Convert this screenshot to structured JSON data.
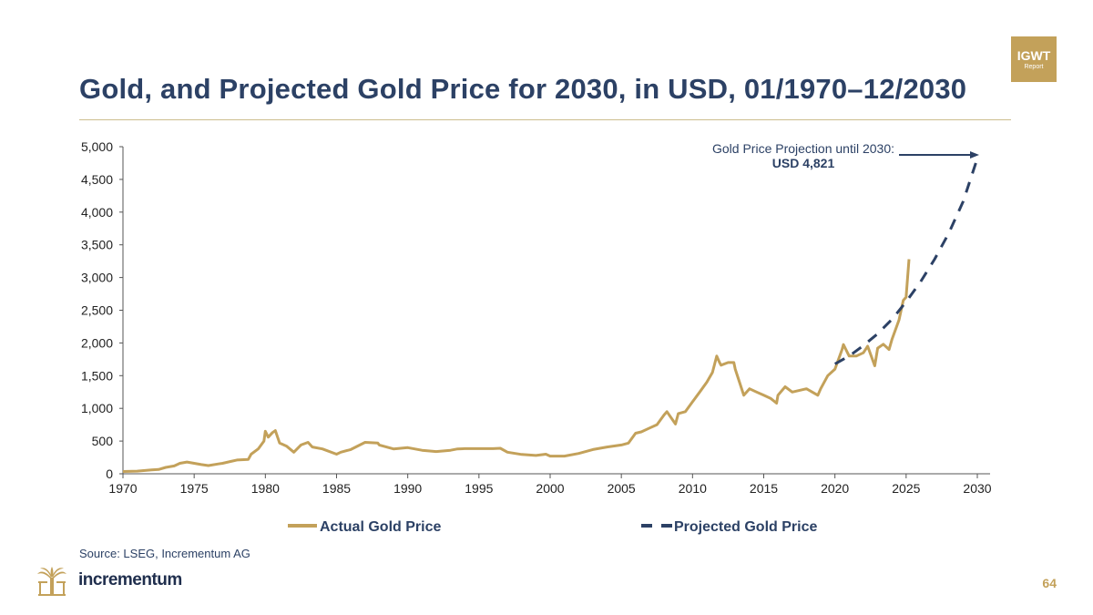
{
  "page": {
    "title": "Gold, and Projected Gold Price for 2030, in USD, 01/1970–12/2030",
    "badge_main": "IGWT",
    "badge_sub": "Report",
    "source": "Source: LSEG, Incrementum AG",
    "brand": "incrementum",
    "page_number": "64"
  },
  "colors": {
    "actual": "#c3a15a",
    "projected": "#2c4165",
    "title": "#2c4165",
    "axis": "#555555"
  },
  "chart_data": {
    "type": "line",
    "title": "Gold, and Projected Gold Price for 2030, in USD, 01/1970–12/2030",
    "xlabel": "",
    "ylabel": "",
    "xlim": [
      1970,
      2030
    ],
    "ylim": [
      0,
      5000
    ],
    "x_ticks": [
      1970,
      1975,
      1980,
      1985,
      1990,
      1995,
      2000,
      2005,
      2010,
      2015,
      2020,
      2025,
      2030
    ],
    "y_ticks": [
      0,
      500,
      1000,
      1500,
      2000,
      2500,
      3000,
      3500,
      4000,
      4500,
      5000
    ],
    "y_tick_labels": [
      "0",
      "500",
      "1,000",
      "1,500",
      "2,000",
      "2,500",
      "3,000",
      "3,500",
      "4,000",
      "4,500",
      "5,000"
    ],
    "legend_position": "bottom",
    "grid": false,
    "series": [
      {
        "name": "Actual Gold Price",
        "style": "solid",
        "x": [
          1970,
          1971,
          1972,
          1972.5,
          1973,
          1973.6,
          1974,
          1974.5,
          1975,
          1975.5,
          1976,
          1976.7,
          1977,
          1978,
          1978.8,
          1979,
          1979.5,
          1979.9,
          1980.0,
          1980.2,
          1980.5,
          1980.7,
          1981,
          1981.5,
          1982,
          1982.5,
          1983,
          1983.3,
          1984,
          1985,
          1985.3,
          1986,
          1987,
          1987.9,
          1988,
          1989,
          1990,
          1991,
          1992,
          1993,
          1993.5,
          1994,
          1995,
          1996,
          1996.5,
          1997,
          1998,
          1999,
          1999.7,
          2000,
          2001,
          2002,
          2003,
          2004,
          2005,
          2005.5,
          2006,
          2006.4,
          2007,
          2007.5,
          2008,
          2008.2,
          2008.8,
          2009,
          2009.5,
          2010,
          2010.5,
          2011,
          2011.4,
          2011.7,
          2011.9,
          2012,
          2012.5,
          2012.9,
          2013,
          2013.3,
          2013.6,
          2014,
          2014.5,
          2015,
          2015.5,
          2015.9,
          2016,
          2016.5,
          2017,
          2018,
          2018.8,
          2019,
          2019.5,
          2020,
          2020.5,
          2020.6,
          2021,
          2021.5,
          2022,
          2022.3,
          2022.8,
          2023,
          2023.4,
          2023.8,
          2024,
          2024.5,
          2024.8,
          2025,
          2025.2
        ],
        "y": [
          35,
          41,
          58,
          65,
          97,
          120,
          160,
          180,
          160,
          140,
          125,
          150,
          160,
          210,
          220,
          300,
          380,
          500,
          650,
          560,
          630,
          660,
          470,
          420,
          330,
          440,
          480,
          410,
          380,
          300,
          330,
          370,
          480,
          470,
          440,
          380,
          400,
          360,
          340,
          360,
          380,
          385,
          385,
          385,
          390,
          330,
          295,
          280,
          300,
          270,
          270,
          310,
          370,
          410,
          440,
          470,
          620,
          640,
          700,
          750,
          900,
          950,
          760,
          920,
          950,
          1100,
          1250,
          1400,
          1550,
          1800,
          1700,
          1660,
          1700,
          1700,
          1600,
          1400,
          1200,
          1300,
          1250,
          1200,
          1150,
          1080,
          1200,
          1330,
          1250,
          1300,
          1200,
          1300,
          1500,
          1600,
          1900,
          1975,
          1800,
          1800,
          1850,
          1950,
          1650,
          1920,
          1980,
          1900,
          2050,
          2350,
          2650,
          2700,
          3280
        ]
      },
      {
        "name": "Projected Gold Price",
        "style": "dashed",
        "x": [
          2020,
          2021,
          2022,
          2023,
          2024,
          2025,
          2026,
          2027,
          2028,
          2029,
          2030
        ],
        "y": [
          1680,
          1800,
          1960,
          2140,
          2360,
          2630,
          2930,
          3280,
          3680,
          4160,
          4821
        ]
      }
    ],
    "annotation": {
      "text": "Gold Price Projection until 2030:",
      "value": "USD 4,821"
    }
  }
}
